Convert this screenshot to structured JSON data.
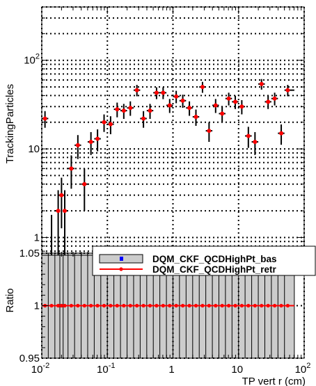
{
  "chart_data": [
    {
      "type": "scatter",
      "panel": "main",
      "xscale": "log",
      "yscale": "log",
      "xlim": [
        0.01,
        100
      ],
      "ylim": [
        0.63,
        400
      ],
      "ylabel": "TrackingParticles",
      "xlabel": "",
      "grid": true,
      "y_tick_labels": [
        "1",
        "10",
        "10^2"
      ],
      "legend": {
        "placement": "bottom-right",
        "entries": [
          {
            "label": "DQM_CKF_QCDHighPt_bas",
            "color": "#0000ff",
            "style": "box"
          },
          {
            "label": "DQM_CKF_QCDHighPt_retr",
            "color": "#ff0000",
            "style": "marker-line"
          }
        ]
      },
      "series": [
        {
          "color": "#ff0000",
          "x": [
            0.0112,
            0.0141,
            0.0178,
            0.02,
            0.0224,
            0.0282,
            0.0355,
            0.0447,
            0.0562,
            0.0708,
            0.0891,
            0.112,
            0.141,
            0.178,
            0.224,
            0.282,
            0.355,
            0.447,
            0.562,
            0.708,
            0.891,
            1.12,
            1.41,
            1.78,
            2.24,
            2.82,
            3.55,
            4.47,
            5.62,
            7.08,
            8.91,
            11.2,
            14.1,
            17.8,
            22.4,
            28.2,
            35.5,
            44.7,
            56.2
          ],
          "y": [
            22,
            0,
            2,
            3,
            2,
            6,
            11,
            4,
            12,
            13,
            20,
            19,
            28,
            27,
            29,
            46,
            22,
            27,
            43,
            43,
            31,
            39,
            35,
            29,
            23,
            50,
            16,
            31,
            25,
            37,
            34,
            30,
            14,
            12,
            54,
            34,
            37,
            15,
            46
          ]
        }
      ]
    },
    {
      "type": "line",
      "panel": "ratio",
      "xscale": "log",
      "xlim": [
        0.01,
        100
      ],
      "ylim": [
        0.95,
        1.05
      ],
      "ylabel": "Ratio",
      "xlabel": "TP vert r (cm)",
      "grid": true,
      "x_tick_labels": [
        "10^-2",
        "10^-1",
        "1",
        "10",
        "10^2"
      ],
      "y_tick_labels": [
        "0.95",
        "1",
        "1.05"
      ],
      "band": {
        "color": "#cccccc",
        "low": 0.95,
        "high": 1.05,
        "xmax": 70.8
      },
      "series": [
        {
          "color": "#ff0000",
          "value": 1.0
        }
      ]
    }
  ]
}
